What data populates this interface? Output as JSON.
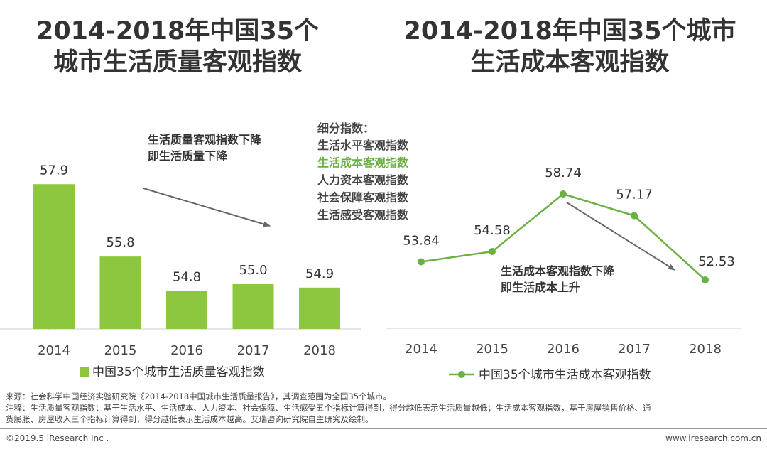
{
  "left_title": {
    "line1": "2014-2018年中国35个",
    "line2": "城市生活质量客观指数"
  },
  "right_title": {
    "line1": "2014-2018年中国35个城市",
    "line2": "生活成本客观指数"
  },
  "colors": {
    "bar": "#8dc63f",
    "line": "#6ab042",
    "highlight": "#6ab042",
    "text": "#333333",
    "arrow": "#666666"
  },
  "chart_data": [
    {
      "type": "bar",
      "title": "2014-2018年中国35个城市生活质量客观指数",
      "categories": [
        "2014",
        "2015",
        "2016",
        "2017",
        "2018"
      ],
      "series": [
        {
          "name": "中国35个城市生活质量客观指数",
          "values": [
            57.9,
            55.8,
            54.8,
            55.0,
            54.9
          ]
        }
      ],
      "data_labels": [
        "57.9",
        "55.8",
        "54.8",
        "55.0",
        "54.9"
      ],
      "ylim": [
        53.7,
        58.4
      ],
      "legend": "bottom",
      "annotation": [
        "生活质量客观指数下降",
        "即生活质量下降"
      ]
    },
    {
      "type": "line",
      "title": "2014-2018年中国35个城市生活成本客观指数",
      "categories": [
        "2014",
        "2015",
        "2016",
        "2017",
        "2018"
      ],
      "series": [
        {
          "name": "中国35个城市生活成本客观指数",
          "values": [
            53.84,
            54.58,
            58.74,
            57.17,
            52.53
          ]
        }
      ],
      "data_labels": [
        "53.84",
        "54.58",
        "58.74",
        "57.17",
        "52.53"
      ],
      "ylim": [
        48,
        61
      ],
      "legend": "bottom",
      "annotation": [
        "生活成本客观指数下降",
        "即生活成本上升"
      ],
      "sub_indices": {
        "heading": "细分指数：",
        "items": [
          "生活水平客观指数",
          "生活成本客观指数",
          "人力资本客观指数",
          "社会保障客观指数",
          "生活感受客观指数"
        ],
        "highlighted_index": 1
      }
    }
  ],
  "footer": {
    "source": "来源：社会科学中国经济实验研究院《2014-2018中国城市生活质量报告》，其调查范围为全国35个城市。",
    "note_line1": "注释：生活质量客观指数：基于生活水平、生活成本、人力资本、社会保障、生活感受五个指标计算得到，得分越低表示生活质量越低；生活成本客观指数，基于房屋销售价格、通",
    "note_line2": "货膨胀、房屋收入三个指标计算得到，得分越低表示生活成本越高。艾瑞咨询研究院自主研究及绘制。",
    "copyright": "©2019.5 iResearch Inc .",
    "website": "www.iresearch.com.cn"
  }
}
